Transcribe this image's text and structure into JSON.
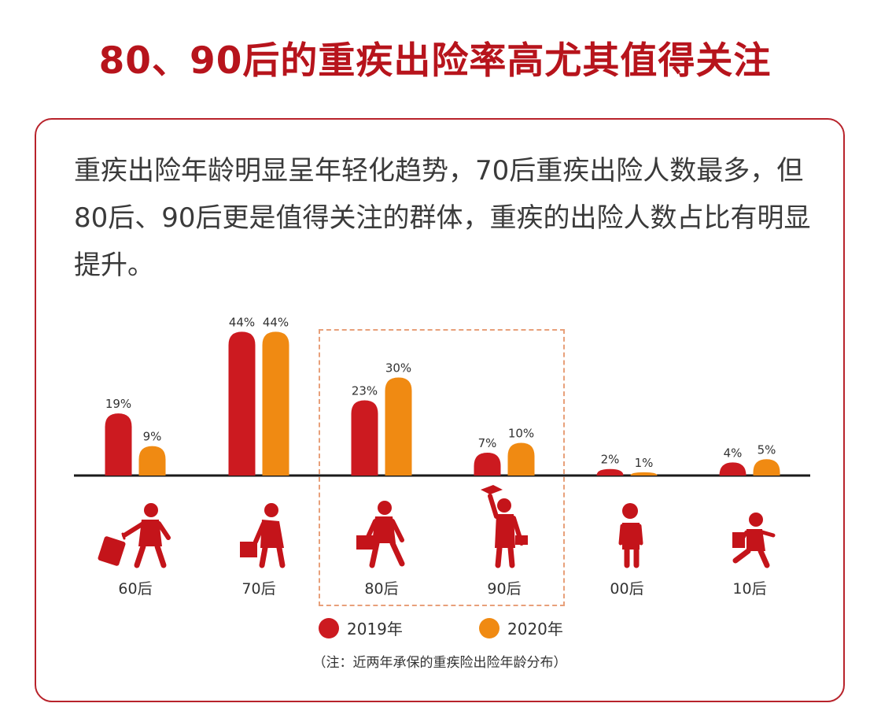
{
  "title": "80、90后的重疾出险率高尤其值得关注",
  "intro": "重疾出险年龄明显呈年轻化趋势，70后重疾出险人数最多，但80后、90后更是值得关注的群体，重疾的出险人数占比有明显提升。",
  "colors": {
    "series_2019": "#cc1a20",
    "series_2020": "#f08a12",
    "figure": "#c4141a",
    "accent": "#b7141c"
  },
  "chart_data": {
    "type": "bar",
    "categories": [
      "60后",
      "70后",
      "80后",
      "90后",
      "00后",
      "10后"
    ],
    "series": [
      {
        "name": "2019年",
        "values": [
          19,
          44,
          23,
          7,
          2,
          4
        ],
        "labels": [
          "19%",
          "44%",
          "23%",
          "7%",
          "2%",
          "4%"
        ]
      },
      {
        "name": "2020年",
        "values": [
          9,
          44,
          30,
          10,
          1,
          5
        ],
        "labels": [
          "9%",
          "44%",
          "30%",
          "10%",
          "1%",
          "5%"
        ]
      }
    ],
    "category_icons": [
      "traveler-with-suitcase-icon",
      "stooped-man-with-briefcase-icon",
      "office-worker-with-briefcase-icon",
      "graduate-with-cap-icon",
      "child-icon",
      "running-child-icon"
    ],
    "highlighted_categories": [
      "80后",
      "90后"
    ],
    "unit": "%",
    "legend_position": "bottom",
    "note": "（注：近两年承保的重疾险出险年龄分布）"
  }
}
